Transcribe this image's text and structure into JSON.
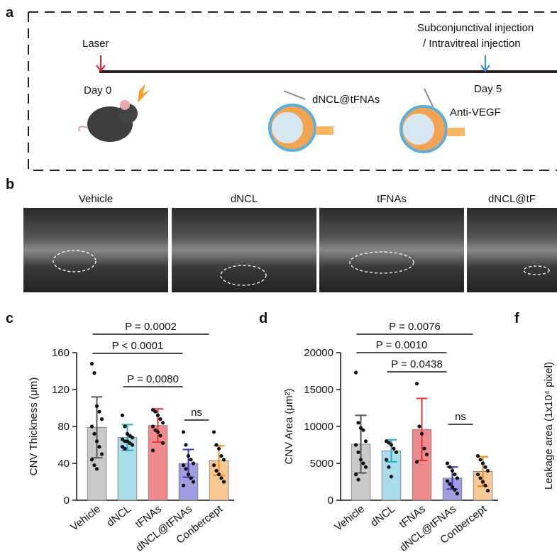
{
  "panel_labels": {
    "a": "a",
    "b": "b",
    "c": "c",
    "d": "d",
    "f": "f"
  },
  "diagram": {
    "laser": "Laser",
    "day0": "Day 0",
    "injection_line1": "Subconjunctival injection",
    "injection_line2": "/ Intravitreal injection",
    "day5": "Day 5",
    "eye1": "dNCL@tFNAs",
    "eye2": "Anti-VEGF"
  },
  "oct_images": {
    "labels": [
      "Vehicle",
      "dNCL",
      "tFNAs",
      "dNCL@tF"
    ]
  },
  "leakage_axis_label": "Leakage area (1x10⁴ pixel)",
  "chart_data": [
    {
      "type": "bar",
      "y_label": "CNV Thickness (μm)",
      "categories": [
        "Vehicle",
        "dNCL",
        "tFNAs",
        "dNCL@tFNAs",
        "Conbercept"
      ],
      "values": [
        79,
        68,
        81,
        40,
        43
      ],
      "errors": [
        33,
        14,
        18,
        15,
        16
      ],
      "points": [
        [
          148,
          138,
          102,
          96,
          88,
          80,
          72,
          64,
          58,
          50,
          44,
          38,
          34
        ],
        [
          92,
          80,
          72,
          70,
          68,
          66,
          64,
          64,
          62,
          60,
          58,
          56
        ],
        [
          98,
          96,
          92,
          88,
          84,
          80,
          76,
          74,
          70,
          62,
          54
        ],
        [
          74,
          60,
          48,
          44,
          40,
          38,
          34,
          28,
          24,
          20,
          16
        ],
        [
          74,
          60,
          56,
          48,
          44,
          38,
          32,
          28,
          24,
          20
        ]
      ],
      "colors": [
        "#c9c9c9",
        "#a9dde9",
        "#ef8b8e",
        "#a09ee0",
        "#f8c994"
      ],
      "error_colors": [
        "#555555",
        "#2aa8c8",
        "#e0353a",
        "#3b3ab0",
        "#f08a22"
      ],
      "ylim": [
        0,
        160
      ],
      "yticks": [
        0,
        40,
        80,
        120,
        160
      ],
      "annotations": [
        {
          "text": "P = 0.0002",
          "between": [
            "Vehicle",
            "Conbercept"
          ]
        },
        {
          "text": "P < 0.0001",
          "between": [
            "Vehicle",
            "dNCL@tFNAs"
          ]
        },
        {
          "text": "P = 0.0080",
          "between": [
            "dNCL",
            "dNCL@tFNAs"
          ]
        },
        {
          "text": "ns",
          "between": [
            "dNCL@tFNAs",
            "Conbercept"
          ]
        }
      ]
    },
    {
      "type": "bar",
      "y_label": "CNV Area (μm²)",
      "categories": [
        "Vehicle",
        "dNCL",
        "tFNAs",
        "dNCL@tFNAs",
        "Conbercept"
      ],
      "values": [
        7600,
        6700,
        9600,
        3000,
        3900
      ],
      "errors": [
        3900,
        1500,
        4200,
        1500,
        2000
      ],
      "points": [
        [
          17300,
          10500,
          9800,
          9500,
          8000,
          7500,
          6500,
          5500,
          5000,
          4500,
          3500,
          2800
        ],
        [
          8000,
          7800,
          7500,
          7000,
          6500,
          5500,
          4500,
          3200
        ],
        [
          15800,
          10000,
          9000,
          7000,
          6200,
          5200
        ],
        [
          5000,
          4500,
          4000,
          3500,
          3000,
          2600,
          2200,
          1800,
          1400,
          900
        ],
        [
          6000,
          5500,
          5000,
          4500,
          4000,
          3500,
          3000,
          2500,
          2000,
          1300
        ]
      ],
      "colors": [
        "#c9c9c9",
        "#a9dde9",
        "#ef8b8e",
        "#a09ee0",
        "#f8c994"
      ],
      "error_colors": [
        "#555555",
        "#2aa8c8",
        "#e0353a",
        "#3b3ab0",
        "#f08a22"
      ],
      "ylim": [
        0,
        20000
      ],
      "yticks": [
        0,
        5000,
        10000,
        15000,
        20000
      ],
      "annotations": [
        {
          "text": "P = 0.0076",
          "between": [
            "Vehicle",
            "Conbercept"
          ]
        },
        {
          "text": "P = 0.0010",
          "between": [
            "Vehicle",
            "dNCL@tFNAs"
          ]
        },
        {
          "text": "P = 0.0438",
          "between": [
            "dNCL",
            "dNCL@tFNAs"
          ]
        },
        {
          "text": "ns",
          "between": [
            "dNCL@tFNAs",
            "Conbercept"
          ]
        }
      ]
    }
  ]
}
